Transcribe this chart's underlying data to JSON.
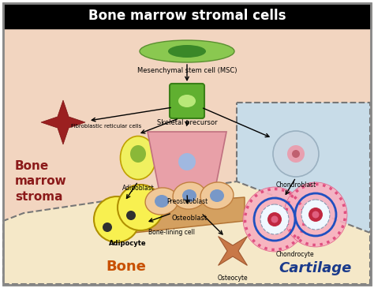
{
  "title": "Bone marrow stromal cells",
  "title_bg": "#000000",
  "title_color": "#ffffff",
  "bg_main": "#f2d5c0",
  "bg_cartilage": "#c8dce8",
  "bg_bone": "#f5e8c8",
  "label_bone_marrow": "Bone\nmarrow\nstroma",
  "label_bone": "Bone",
  "label_cartilage": "Cartilage",
  "label_bone_color": "#c85000",
  "label_marrow_color": "#8b1a1a",
  "label_cartilage_color": "#1a3a8b",
  "msc_label": "Mesenchymal stem cell (MSC)",
  "skeletal_label": "Skeletal precursor",
  "fib_label": "Fibroblastic reticular cells",
  "adipoblast_label": "Adipoblast",
  "preosteoblast_label": "Preosteoblast",
  "chondroblast_label": "Chondroblast",
  "adipocyte_label": "Adipocyte",
  "osteoblast_label": "Osteoblast",
  "chondrocyte_label": "Chondrocyte",
  "bonelining_label": "Bone-lining cell",
  "osteocyte_label": "Osteocyte"
}
